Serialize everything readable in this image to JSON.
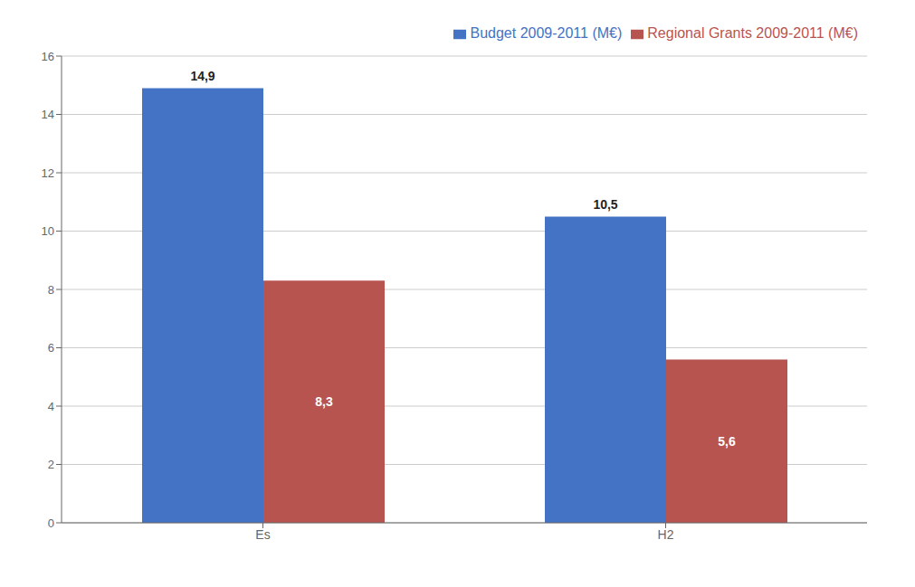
{
  "chart_data": {
    "type": "bar",
    "categories": [
      "Es",
      "H2"
    ],
    "series": [
      {
        "name": "Budget 2009-2011 (M€)",
        "color": "#4472C4",
        "values": [
          14.9,
          10.5
        ],
        "value_labels": [
          "14,9",
          "10,5"
        ]
      },
      {
        "name": "Regional Grants 2009-2011 (M€)",
        "color": "#B85450",
        "values": [
          8.3,
          5.6
        ],
        "value_labels": [
          "8,3",
          "5,6"
        ]
      }
    ],
    "ylim": [
      0,
      16
    ],
    "yticks": [
      0,
      2,
      4,
      6,
      8,
      10,
      12,
      14,
      16
    ],
    "grid": true,
    "legend": "upper right",
    "data_labels": true
  }
}
